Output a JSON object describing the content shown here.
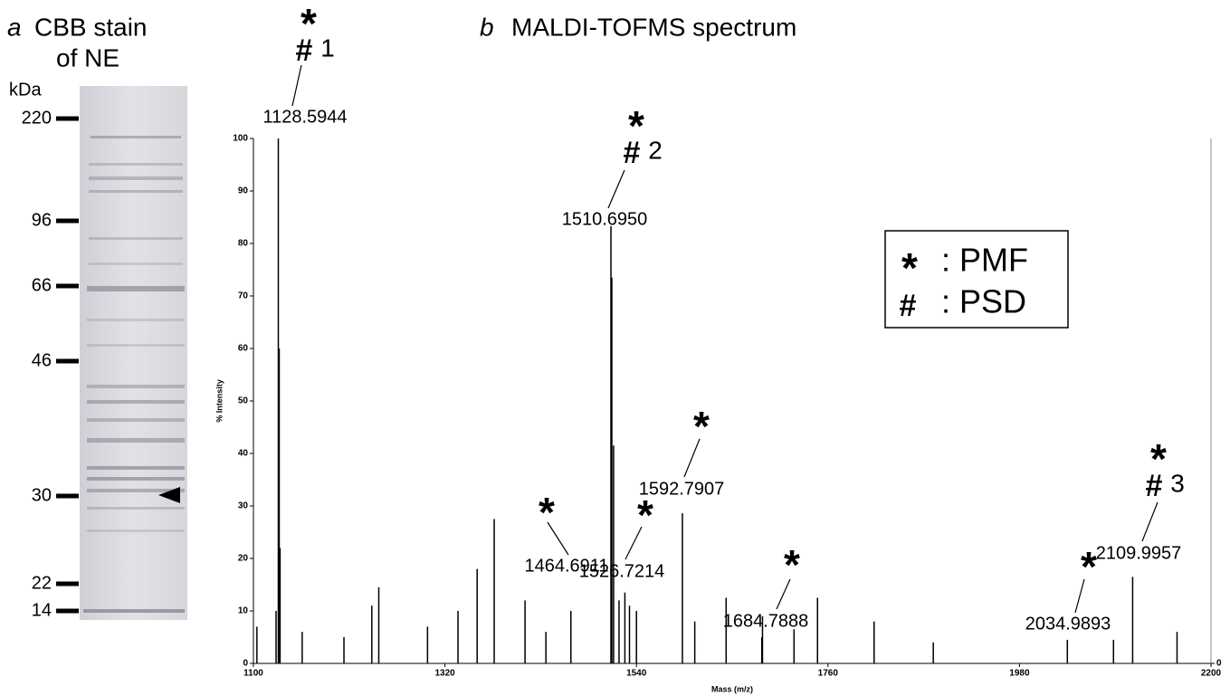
{
  "chart_data": [
    {
      "type": "gel",
      "panel": "a",
      "title_lines": [
        "CBB stain",
        "of NE"
      ],
      "unit": "kDa",
      "markers": [
        220,
        96,
        66,
        46,
        30,
        22,
        14
      ]
    },
    {
      "type": "spectrum",
      "panel": "b",
      "title": "MALDI-TOFMS spectrum",
      "x_label": "Mass (m/z)",
      "y_label": "% Intensity",
      "color": "#000000",
      "xlim": [
        1100,
        2200
      ],
      "xticks": [
        1100,
        1320,
        1540,
        1760,
        1980,
        2200
      ],
      "ylim": [
        0,
        100
      ],
      "yticks": [
        0,
        10,
        20,
        30,
        40,
        50,
        60,
        70,
        80,
        90,
        100
      ],
      "y2lim": [
        0,
        100
      ],
      "y2ticks": [
        0
      ],
      "x": [
        1104,
        1126,
        1129.6,
        1130.6,
        1156,
        1204,
        1236,
        1244,
        1300,
        1335,
        1357,
        1376.6,
        1412,
        1436,
        1511.7,
        1513.7,
        1520,
        1532,
        1540,
        1607,
        1643,
        1684,
        1721,
        1748,
        1813,
        1881,
        2088,
        2161
      ],
      "values": [
        7,
        10,
        60,
        22,
        6,
        5,
        11,
        14.5,
        7,
        10,
        18,
        27.5,
        12,
        6,
        73.5,
        41.5,
        12,
        11,
        10,
        8,
        12.5,
        5,
        6.5,
        12.5,
        8,
        4,
        4.5,
        6
      ],
      "annotations": [
        {
          "mass": 1128.5944,
          "mass_label": "1128.5944",
          "height": 100,
          "symbols": [
            "*",
            "#"
          ],
          "number": 1
        },
        {
          "mass": 1510.695,
          "mass_label": "1510.6950",
          "height": 83.3,
          "symbols": [
            "*",
            "#"
          ],
          "number": 2
        },
        {
          "mass": 1592.7907,
          "mass_label": "1592.7907",
          "height": 28.6,
          "symbols": [
            "*"
          ]
        },
        {
          "mass": 1464.6911,
          "mass_label": "1464.6911",
          "height": 10,
          "symbols": [
            "*"
          ]
        },
        {
          "mass": 1526.7214,
          "mass_label": "1526.7214",
          "height": 13.5,
          "symbols": [
            "*"
          ]
        },
        {
          "mass": 1684.7888,
          "mass_label": "1684.7888",
          "height": 9,
          "symbols": [
            "*"
          ]
        },
        {
          "mass": 2034.9893,
          "mass_label": "2034.9893",
          "height": 4.5,
          "symbols": [
            "*"
          ]
        },
        {
          "mass": 2109.9957,
          "mass_label": "2109.9957",
          "height": 16.5,
          "symbols": [
            "*",
            "#"
          ],
          "number": 3
        }
      ],
      "legend": [
        {
          "symbol": "*",
          "label": ": PMF"
        },
        {
          "symbol": "#",
          "label": ": PSD"
        }
      ]
    }
  ]
}
